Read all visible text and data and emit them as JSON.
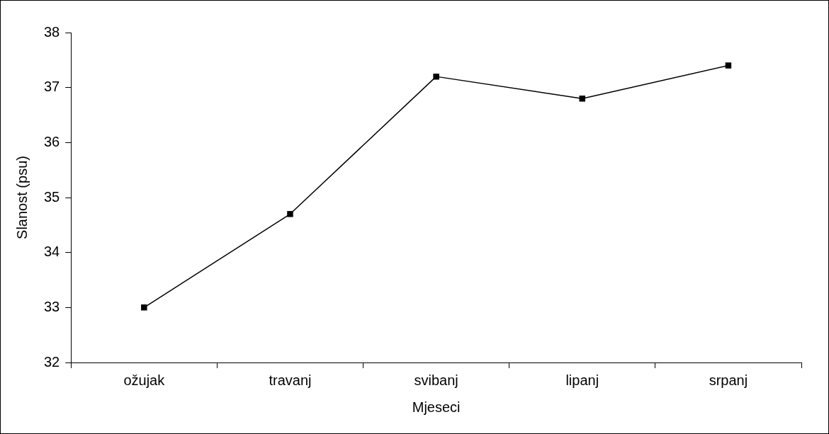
{
  "chart_data": {
    "type": "line",
    "xlabel": "Mjeseci",
    "ylabel": "Slanost (psu)",
    "categories": [
      "ožujak",
      "travanj",
      "svibanj",
      "lipanj",
      "srpanj"
    ],
    "series": [
      {
        "color": "#000000",
        "values": [
          33.0,
          34.7,
          37.2,
          36.8,
          37.4
        ]
      }
    ],
    "ylim": [
      32,
      38
    ],
    "yticks": [
      32,
      33,
      34,
      35,
      36,
      37,
      38
    ],
    "marker": "square",
    "line_style": "solid"
  }
}
